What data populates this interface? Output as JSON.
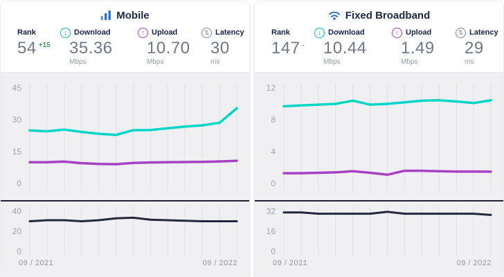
{
  "x_axis": {
    "start_label": "09 / 2021",
    "end_label": "09 / 2022"
  },
  "colors": {
    "download_line": "#00d6c8",
    "upload_line": "#a840c4",
    "latency_line": "#23273d",
    "brand_blue": "#2b71d3",
    "rank_up_green": "#3c9b5f",
    "rank_neutral_gray": "#8b93a4",
    "download_icon": "#00bfb2",
    "upload_icon": "#a840c4",
    "latency_icon": "#7d8494",
    "chart_background": "#f0f0f2",
    "grid_line": "#e4e4e8",
    "tick_text": "#9ba1ae"
  },
  "panels": [
    {
      "title": "Mobile",
      "icon": "mobile-signal-bars-icon",
      "stats": [
        {
          "label": "Rank",
          "value": "54",
          "change": "+15",
          "change_color": "#3c9b5f",
          "unit": ""
        },
        {
          "label": "Download",
          "value": "35.36",
          "unit": "Mbps",
          "icon_glyph": "↓",
          "icon_color": "#00bfb2"
        },
        {
          "label": "Upload",
          "value": "10.70",
          "unit": "Mbps",
          "icon_glyph": "↑",
          "icon_color": "#a840c4"
        },
        {
          "label": "Latency",
          "value": "30",
          "unit": "ms",
          "icon_glyph": "⇅",
          "icon_color": "#7d8494"
        }
      ]
    },
    {
      "title": "Fixed Broadband",
      "icon": "wifi-icon",
      "stats": [
        {
          "label": "Rank",
          "value": "147",
          "change": "-",
          "change_color": "#8b93a4",
          "unit": ""
        },
        {
          "label": "Download",
          "value": "10.44",
          "unit": "Mbps",
          "icon_glyph": "↓",
          "icon_color": "#00bfb2"
        },
        {
          "label": "Upload",
          "value": "1.49",
          "unit": "Mbps",
          "icon_glyph": "↑",
          "icon_color": "#a840c4"
        },
        {
          "label": "Latency",
          "value": "29",
          "unit": "ms",
          "icon_glyph": "⇅",
          "icon_color": "#7d8494"
        }
      ]
    }
  ],
  "chart_data": [
    {
      "type": "line",
      "title": "Mobile speed over time",
      "x_range": [
        "09 / 2021",
        "09 / 2022"
      ],
      "x_points": 13,
      "yticks": [
        45,
        30,
        15,
        0
      ],
      "ylim": [
        0,
        45
      ],
      "grid": "vertical-only",
      "legend": "none",
      "series": [
        {
          "name": "Download (Mbps)",
          "color": "#00d6c8",
          "values": [
            25.0,
            24.6,
            25.4,
            24.3,
            23.4,
            22.9,
            25.1,
            25.2,
            26.0,
            26.8,
            27.4,
            28.6,
            35.4
          ]
        },
        {
          "name": "Upload (Mbps)",
          "color": "#a840c4",
          "values": [
            10.0,
            10.0,
            10.3,
            9.6,
            9.2,
            9.1,
            9.7,
            9.9,
            10.0,
            10.1,
            10.2,
            10.4,
            10.7
          ]
        }
      ]
    },
    {
      "type": "line",
      "title": "Mobile latency over time",
      "x_range": [
        "09 / 2021",
        "09 / 2022"
      ],
      "x_points": 13,
      "yticks": [
        40,
        20,
        0
      ],
      "ylim": [
        0,
        40
      ],
      "grid": "vertical-only",
      "legend": "none",
      "series": [
        {
          "name": "Latency (ms)",
          "color": "#23273d",
          "values": [
            30,
            31,
            31,
            30,
            31,
            33,
            33.5,
            31.5,
            31,
            30.5,
            30,
            30,
            30
          ]
        }
      ]
    },
    {
      "type": "line",
      "title": "Fixed broadband speed over time",
      "x_range": [
        "09 / 2021",
        "09 / 2022"
      ],
      "x_points": 13,
      "yticks": [
        12,
        8,
        4,
        0
      ],
      "ylim": [
        0,
        12
      ],
      "grid": "vertical-only",
      "legend": "none",
      "series": [
        {
          "name": "Download (Mbps)",
          "color": "#00d6c8",
          "values": [
            9.7,
            9.8,
            9.9,
            10.0,
            10.4,
            9.9,
            10.0,
            10.2,
            10.4,
            10.45,
            10.3,
            10.1,
            10.44
          ]
        },
        {
          "name": "Upload (Mbps)",
          "color": "#a840c4",
          "values": [
            1.3,
            1.3,
            1.35,
            1.4,
            1.55,
            1.35,
            1.1,
            1.6,
            1.6,
            1.55,
            1.5,
            1.5,
            1.49
          ]
        }
      ]
    },
    {
      "type": "line",
      "title": "Fixed broadband latency over time",
      "x_range": [
        "09 / 2021",
        "09 / 2022"
      ],
      "x_points": 13,
      "yticks": [
        32,
        16,
        0
      ],
      "ylim": [
        0,
        32
      ],
      "grid": "vertical-only",
      "legend": "none",
      "series": [
        {
          "name": "Latency (ms)",
          "color": "#23273d",
          "values": [
            31,
            31,
            30,
            30,
            30,
            30,
            31.5,
            30,
            30,
            30,
            30,
            30,
            29
          ]
        }
      ]
    }
  ]
}
